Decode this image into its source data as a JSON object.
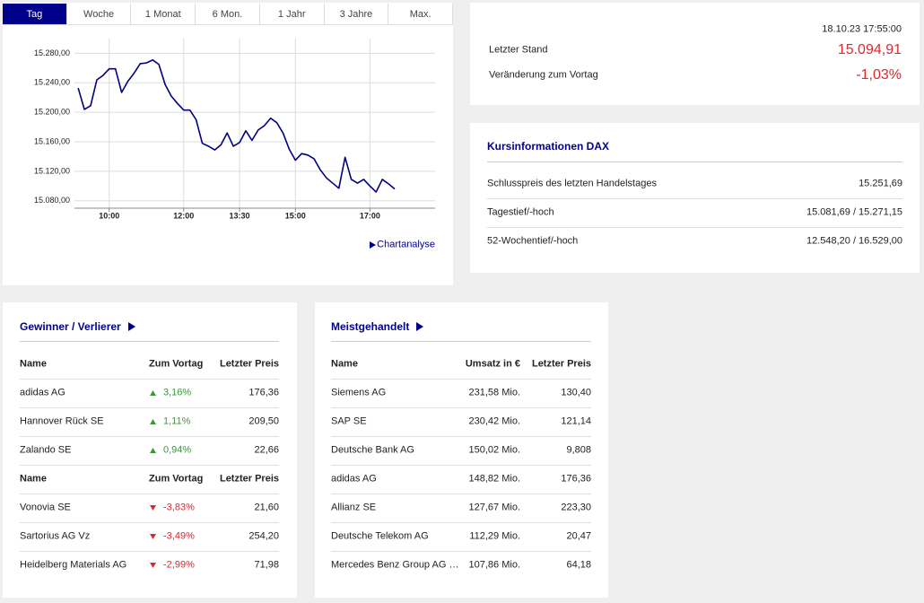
{
  "tabs": [
    "Tag",
    "Woche",
    "1 Monat",
    "6 Mon.",
    "1 Jahr",
    "3 Jahre",
    "Max."
  ],
  "chart_data": {
    "type": "line",
    "x": [
      550,
      560,
      570,
      580,
      590,
      600,
      610,
      620,
      630,
      640,
      650,
      660,
      670,
      680,
      690,
      700,
      710,
      720,
      730,
      740,
      750,
      760,
      770,
      780,
      790,
      800,
      810,
      820,
      830,
      840,
      850,
      860,
      870,
      880,
      890,
      900,
      910,
      920,
      930,
      940,
      950,
      960,
      970,
      980,
      990,
      1000,
      1010,
      1020,
      1030,
      1040,
      1050,
      1060
    ],
    "values": [
      15233,
      15204,
      15209,
      15244,
      15250,
      15259,
      15259,
      15227,
      15242,
      15253,
      15266,
      15267,
      15271,
      15265,
      15238,
      15222,
      15212,
      15203,
      15203,
      15190,
      15158,
      15154,
      15149,
      15156,
      15172,
      15154,
      15159,
      15175,
      15162,
      15176,
      15182,
      15192,
      15186,
      15172,
      15150,
      15135,
      15144,
      15142,
      15137,
      15122,
      15111,
      15104,
      15097,
      15139,
      15109,
      15104,
      15109,
      15100,
      15092,
      15109,
      15103,
      15096
    ],
    "color": "#000080",
    "xlim": [
      544,
      1125
    ],
    "xticks": [
      {
        "value": 600,
        "label": "10:00"
      },
      {
        "value": 720,
        "label": "12:00"
      },
      {
        "value": 810,
        "label": "13:30"
      },
      {
        "value": 900,
        "label": "15:00"
      },
      {
        "value": 1020,
        "label": "17:00"
      }
    ],
    "ylim": [
      15070,
      15300
    ],
    "yticks": [
      {
        "value": 15080,
        "label": "15.080,00"
      },
      {
        "value": 15120,
        "label": "15.120,00"
      },
      {
        "value": 15160,
        "label": "15.160,00"
      },
      {
        "value": 15200,
        "label": "15.200,00"
      },
      {
        "value": 15240,
        "label": "15.240,00"
      },
      {
        "value": 15280,
        "label": "15.280,00"
      }
    ],
    "grid": true
  },
  "chart_link": "Chartanalyse",
  "quote": {
    "timestamp": "18.10.23 17:55:00",
    "last_label": "Letzter Stand",
    "last_value": "15.094,91",
    "change_label": "Veränderung zum Vortag",
    "change_value": "-1,03%"
  },
  "info": {
    "title": "Kursinformationen DAX",
    "rows": [
      [
        "Schlusspreis des letzten Handelstages",
        "15.251,69"
      ],
      [
        "Tagestief/-hoch",
        "15.081,69 / 15.271,15"
      ],
      [
        "52-Wochentief/-hoch",
        "12.548,20 / 16.529,00"
      ]
    ]
  },
  "movers": {
    "title": "Gewinner / Verlierer",
    "sections": [
      {
        "header": [
          "Name",
          "Zum Vortag",
          "Letzter Preis"
        ],
        "rows": [
          [
            "adidas AG",
            "3,16%",
            "176,36"
          ],
          [
            "Hannover Rück SE",
            "1,11%",
            "209,50"
          ],
          [
            "Zalando SE",
            "0,94%",
            "22,66"
          ]
        ]
      },
      {
        "header": [
          "Name",
          "Zum Vortag",
          "Letzter Preis"
        ],
        "rows": [
          [
            "Vonovia SE",
            "-3,83%",
            "21,60"
          ],
          [
            "Sartorius AG Vz",
            "-3,49%",
            "254,20"
          ],
          [
            "Heidelberg Materials AG",
            "-2,99%",
            "71,98"
          ]
        ]
      }
    ]
  },
  "most_traded": {
    "title": "Meistgehandelt",
    "header": [
      "Name",
      "Umsatz in €",
      "Letzter Preis"
    ],
    "rows": [
      [
        "Siemens AG",
        "231,58 Mio.",
        "130,40"
      ],
      [
        "SAP SE",
        "230,42 Mio.",
        "121,14"
      ],
      [
        "Deutsche Bank AG",
        "150,02 Mio.",
        "9,808"
      ],
      [
        "adidas AG",
        "148,82 Mio.",
        "176,36"
      ],
      [
        "Allianz SE",
        "127,67 Mio.",
        "223,30"
      ],
      [
        "Deutsche Telekom AG",
        "112,29 Mio.",
        "20,47"
      ],
      [
        "Mercedes Benz Group AG …",
        "107,86 Mio.",
        "64,18"
      ]
    ]
  }
}
